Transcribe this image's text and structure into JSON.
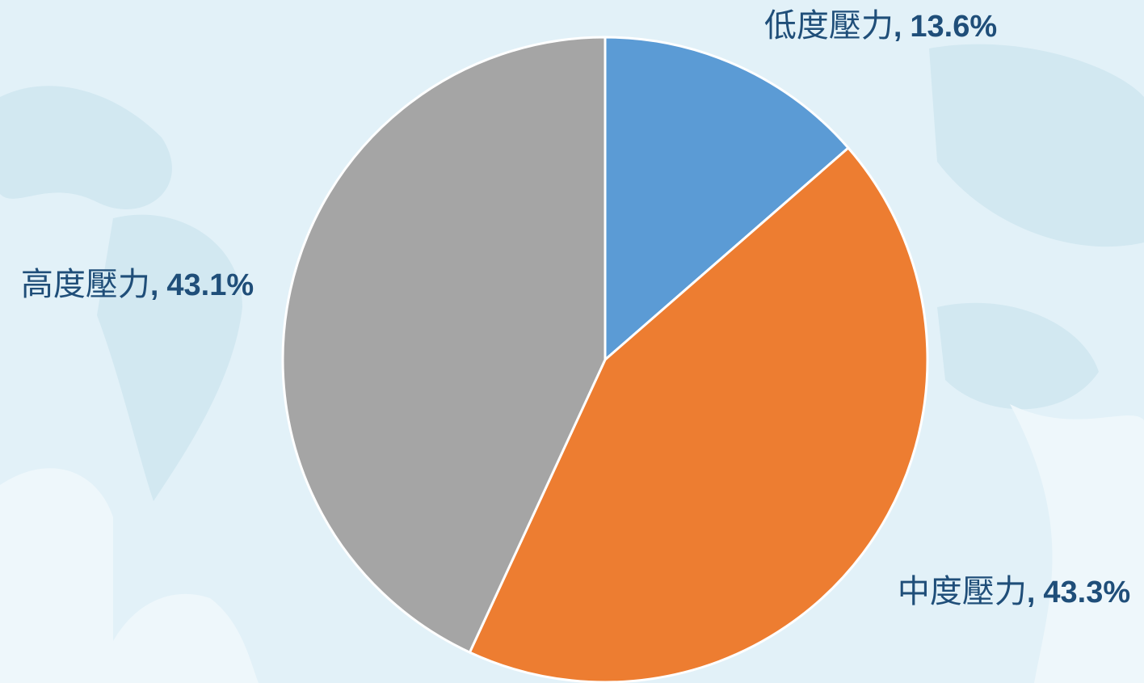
{
  "chart_data": {
    "type": "pie",
    "categories": [
      "低度壓力",
      "中度壓力",
      "高度壓力"
    ],
    "values": [
      13.6,
      43.3,
      43.1
    ],
    "value_labels": [
      "13.6%",
      "43.3%",
      "43.1%"
    ],
    "label_separator": ",",
    "colors": [
      "#5b9bd5",
      "#ed7d31",
      "#a5a5a5"
    ]
  }
}
